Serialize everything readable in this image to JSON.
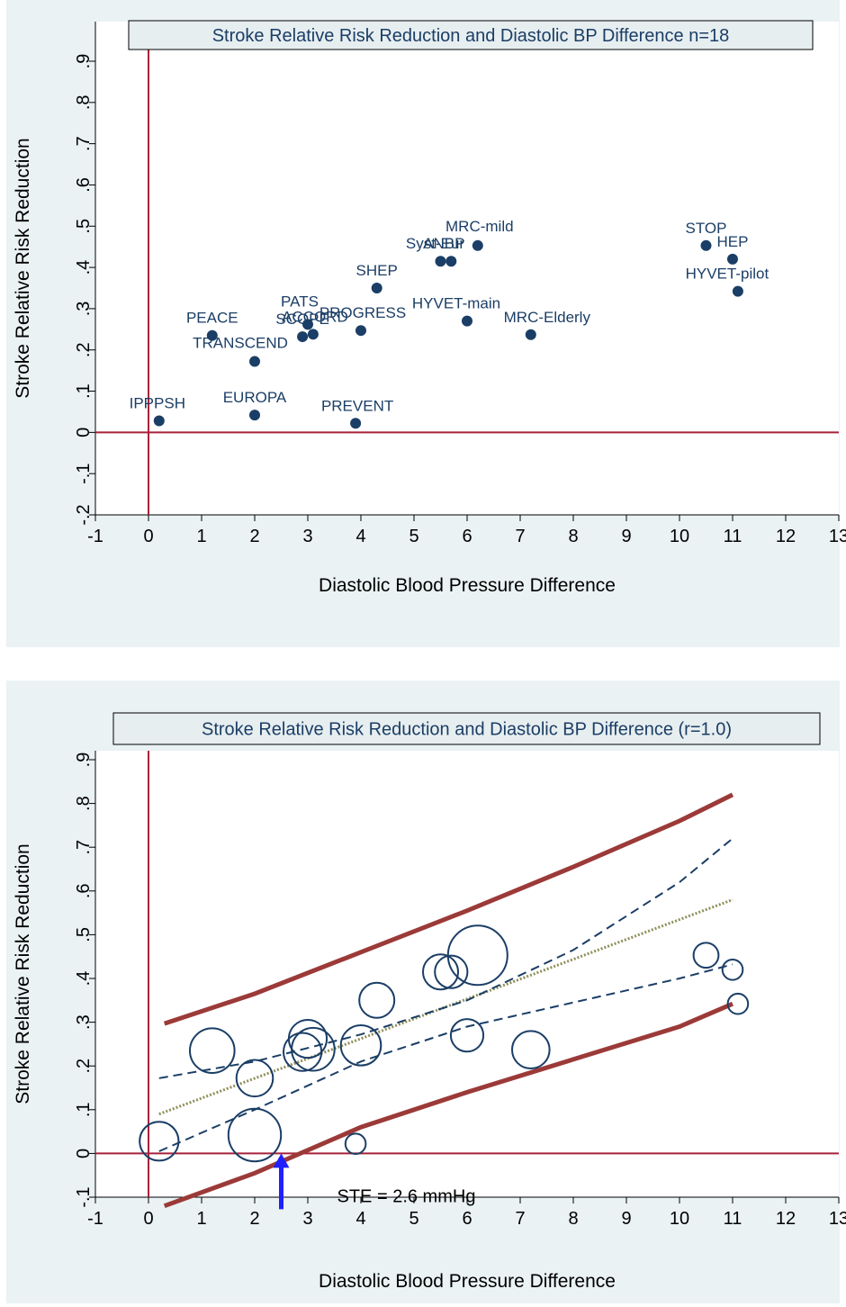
{
  "colors": {
    "background": "#eaf2f3",
    "plot_area": "#ffffff",
    "title_box": "#e7eef0",
    "reference_line": "#a8213a",
    "marker": "#1b3e66",
    "label_text": "#1b3e66",
    "prediction_band": "#9b3a38",
    "confidence_band": "#1b3e66",
    "fit_line": "#8f8f5a",
    "arrow": "#1f1fff"
  },
  "chart_data": [
    {
      "type": "scatter",
      "title": "Stroke Relative Risk Reduction and Diastolic BP Difference n=18",
      "xlabel": "Diastolic Blood Pressure Difference",
      "ylabel": "Stroke Relative Risk Reduction",
      "xlim": [
        -1,
        13
      ],
      "ylim": [
        -0.2,
        0.9
      ],
      "x_ticks": [
        -1,
        0,
        1,
        2,
        3,
        4,
        5,
        6,
        7,
        8,
        9,
        10,
        11,
        12,
        13
      ],
      "x_tick_labels": [
        "-1",
        "0",
        "1",
        "2",
        "3",
        "4",
        "5",
        "6",
        "7",
        "8",
        "9",
        "10",
        "11",
        "12",
        "13"
      ],
      "y_ticks": [
        -0.2,
        -0.1,
        0,
        0.1,
        0.2,
        0.3,
        0.4,
        0.5,
        0.6,
        0.7,
        0.8,
        0.9
      ],
      "y_tick_labels": [
        "-.2",
        "-.1",
        "0",
        ".1",
        ".2",
        ".3",
        ".4",
        ".5",
        ".6",
        ".7",
        ".8",
        ".9"
      ],
      "reference_lines": {
        "x": 0,
        "y": 0
      },
      "grid": false,
      "points": [
        {
          "label": "IPPPSH",
          "x": 0.2,
          "y": 0.028
        },
        {
          "label": "PEACE",
          "x": 1.2,
          "y": 0.235
        },
        {
          "label": "TRANSCEND",
          "x": 2.0,
          "y": 0.172
        },
        {
          "label": "EUROPA",
          "x": 2.0,
          "y": 0.042
        },
        {
          "label": "SCOPE",
          "x": 2.9,
          "y": 0.232
        },
        {
          "label": "PATS",
          "x": 3.0,
          "y": 0.262
        },
        {
          "label": "ACCORD",
          "x": 3.1,
          "y": 0.238
        },
        {
          "label": "PROGRESS",
          "x": 4.0,
          "y": 0.247
        },
        {
          "label": "PREVENT",
          "x": 3.9,
          "y": 0.022
        },
        {
          "label": "SHEP",
          "x": 4.3,
          "y": 0.35
        },
        {
          "label": "Syst-Eur",
          "x": 5.5,
          "y": 0.415
        },
        {
          "label": "ANBP",
          "x": 5.7,
          "y": 0.415
        },
        {
          "label": "MRC-mild",
          "x": 6.2,
          "y": 0.453
        },
        {
          "label": "HYVET-main",
          "x": 6.0,
          "y": 0.27
        },
        {
          "label": "MRC-Elderly",
          "x": 7.2,
          "y": 0.237
        },
        {
          "label": "STOP",
          "x": 10.5,
          "y": 0.453
        },
        {
          "label": "HEP",
          "x": 11.0,
          "y": 0.42
        },
        {
          "label": "HYVET-pilot",
          "x": 11.1,
          "y": 0.342
        }
      ]
    },
    {
      "type": "scatter",
      "title": "Stroke Relative Risk Reduction and Diastolic BP Difference (r=1.0)",
      "xlabel": "Diastolic Blood Pressure Difference",
      "ylabel": "Stroke Relative Risk Reduction",
      "xlim": [
        -1,
        13
      ],
      "ylim": [
        -0.1,
        0.9
      ],
      "x_ticks": [
        -1,
        0,
        1,
        2,
        3,
        4,
        5,
        6,
        7,
        8,
        9,
        10,
        11,
        12,
        13
      ],
      "x_tick_labels": [
        "-1",
        "0",
        "1",
        "2",
        "3",
        "4",
        "5",
        "6",
        "7",
        "8",
        "9",
        "10",
        "11",
        "12",
        "13"
      ],
      "y_ticks": [
        -0.1,
        0,
        0.1,
        0.2,
        0.3,
        0.4,
        0.5,
        0.6,
        0.7,
        0.8,
        0.9
      ],
      "y_tick_labels": [
        "-.1",
        "0",
        ".1",
        ".2",
        ".3",
        ".4",
        ".5",
        ".6",
        ".7",
        ".8",
        ".9"
      ],
      "reference_lines": {
        "x": 0,
        "y": 0
      },
      "grid": false,
      "weighted_points": [
        {
          "x": 0.2,
          "y": 0.028,
          "weight": 0.35
        },
        {
          "x": 1.2,
          "y": 0.235,
          "weight": 0.5
        },
        {
          "x": 2.0,
          "y": 0.172,
          "weight": 0.3
        },
        {
          "x": 2.0,
          "y": 0.042,
          "weight": 0.75
        },
        {
          "x": 2.9,
          "y": 0.232,
          "weight": 0.33
        },
        {
          "x": 3.0,
          "y": 0.262,
          "weight": 0.33
        },
        {
          "x": 3.1,
          "y": 0.238,
          "weight": 0.45
        },
        {
          "x": 4.0,
          "y": 0.247,
          "weight": 0.38
        },
        {
          "x": 3.9,
          "y": 0.022,
          "weight": 0.05
        },
        {
          "x": 4.3,
          "y": 0.35,
          "weight": 0.27
        },
        {
          "x": 5.5,
          "y": 0.415,
          "weight": 0.27
        },
        {
          "x": 5.7,
          "y": 0.415,
          "weight": 0.22
        },
        {
          "x": 6.2,
          "y": 0.453,
          "weight": 1.0
        },
        {
          "x": 6.0,
          "y": 0.27,
          "weight": 0.22
        },
        {
          "x": 7.2,
          "y": 0.237,
          "weight": 0.32
        },
        {
          "x": 10.5,
          "y": 0.453,
          "weight": 0.1
        },
        {
          "x": 11.0,
          "y": 0.42,
          "weight": 0.05
        },
        {
          "x": 11.1,
          "y": 0.342,
          "weight": 0.05
        }
      ],
      "fit_line": {
        "x": [
          0.2,
          11.0
        ],
        "y": [
          0.09,
          0.58
        ]
      },
      "confidence_band": {
        "upper": {
          "x": [
            0.2,
            2,
            4,
            6,
            8,
            10,
            11
          ],
          "y": [
            0.172,
            0.21,
            0.272,
            0.35,
            0.465,
            0.62,
            0.72
          ]
        },
        "lower": {
          "x": [
            0.2,
            2,
            4,
            6,
            8,
            10,
            11
          ],
          "y": [
            0.005,
            0.1,
            0.21,
            0.29,
            0.345,
            0.4,
            0.432
          ]
        }
      },
      "prediction_band": {
        "upper": {
          "x": [
            0.3,
            2,
            4,
            6,
            8,
            10,
            11
          ],
          "y": [
            0.297,
            0.365,
            0.46,
            0.555,
            0.655,
            0.76,
            0.82
          ]
        },
        "lower": {
          "x": [
            0.3,
            2,
            4,
            6,
            8,
            10,
            11
          ],
          "y": [
            -0.12,
            -0.045,
            0.06,
            0.14,
            0.215,
            0.29,
            0.342
          ]
        }
      },
      "annotation": {
        "text": "STE = 2.6 mmHg",
        "x": 2.5,
        "y": 0
      }
    }
  ]
}
